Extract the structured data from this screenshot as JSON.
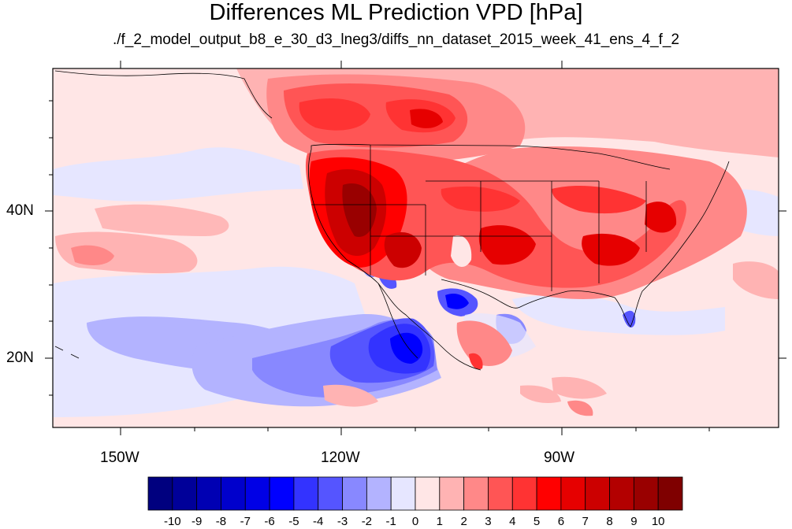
{
  "title": "Differences ML Prediction VPD [hPa]",
  "subtitle": "./f_2_model_output_b8_e_30_d3_lneg3/diffs_nn_dataset_2015_week_41_ens_4_f_2",
  "map": {
    "lat_labels": [
      "40N",
      "20N"
    ],
    "lon_labels": [
      "150W",
      "120W",
      "90W"
    ]
  },
  "colorbar": {
    "labels": [
      "-10",
      "-9",
      "-8",
      "-7",
      "-6",
      "-5",
      "-4",
      "-3",
      "-2",
      "-1",
      "0",
      "1",
      "2",
      "3",
      "4",
      "5",
      "6",
      "7",
      "8",
      "9",
      "10"
    ],
    "colors": [
      "#00007f",
      "#000099",
      "#0000b3",
      "#0000cc",
      "#0000e6",
      "#0000ff",
      "#3333ff",
      "#5555ff",
      "#8888ff",
      "#b3b3ff",
      "#e6e6ff",
      "#ffe6e6",
      "#ffb3b3",
      "#ff8888",
      "#ff5555",
      "#ff3333",
      "#ff0000",
      "#e60000",
      "#cc0000",
      "#b30000",
      "#990000",
      "#7f0000"
    ]
  }
}
